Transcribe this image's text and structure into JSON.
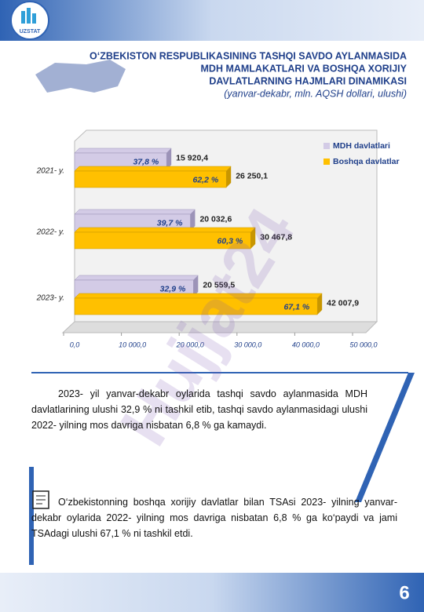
{
  "header": {
    "logo_text": "UZSTAT",
    "title_lines": [
      "O‘ZBEKISTON RESPUBLIKASINING TASHQI SAVDO AYLANMASIDA",
      "MDH MAMLAKATLARI VA BOSHQA XORIJIY",
      "DAVLATLARNING HAJMLARI DINAMIKASI"
    ],
    "subtitle": "(yanvar-dekabr, mln. AQSH dollari, ulushi)"
  },
  "chart_data": {
    "type": "bar",
    "orientation": "horizontal",
    "categories": [
      "2021- y.",
      "2022- y.",
      "2023- y."
    ],
    "series": [
      {
        "name": "MDH davlatlari",
        "color": "#d3cbe6",
        "values": [
          15920.4,
          20032.6,
          20559.5
        ],
        "value_labels": [
          "15 920,4",
          "20 032,6",
          "20 559,5"
        ],
        "share_labels": [
          "37,8 %",
          "39,7 %",
          "32,9 %"
        ]
      },
      {
        "name": "Boshqa davlatlar",
        "color": "#ffc000",
        "values": [
          26250.1,
          30467.8,
          42007.9
        ],
        "value_labels": [
          "26 250,1",
          "30 467,8",
          "42 007,9"
        ],
        "share_labels": [
          "62,2 %",
          "60,3 %",
          "67,1 %"
        ]
      }
    ],
    "xlim": [
      0,
      50000
    ],
    "xticks": [
      {
        "value": 0,
        "label": "0,0"
      },
      {
        "value": 10000,
        "label": "10 000,0"
      },
      {
        "value": 20000,
        "label": "20 000,0"
      },
      {
        "value": 30000,
        "label": "30 000,0"
      },
      {
        "value": 40000,
        "label": "40 000,0"
      },
      {
        "value": 50000,
        "label": "50 000,0"
      }
    ],
    "legend": "top-right"
  },
  "paragraphs": [
    "2023- yil yanvar-dekabr oylarida tashqi savdo aylanmasida MDH davlatlarining ulushi 32,9 % ni tashkil etib, tashqi savdo aylanmasidagi ulushi 2022- yilning mos davriga nisbatan 6,8 % ga kamaydi.",
    "O‘zbekistonning boshqa xorijiy davlatlar bilan TSAsi 2023- yilning yanvar-dekabr oylarida 2022- yilning mos davriga nisbatan 6,8 % ga ko‘paydi va jami TSAdagi ulushi  67,1 % ni tashkil etdi."
  ],
  "watermark": "Hujjat24",
  "page_number": "6"
}
